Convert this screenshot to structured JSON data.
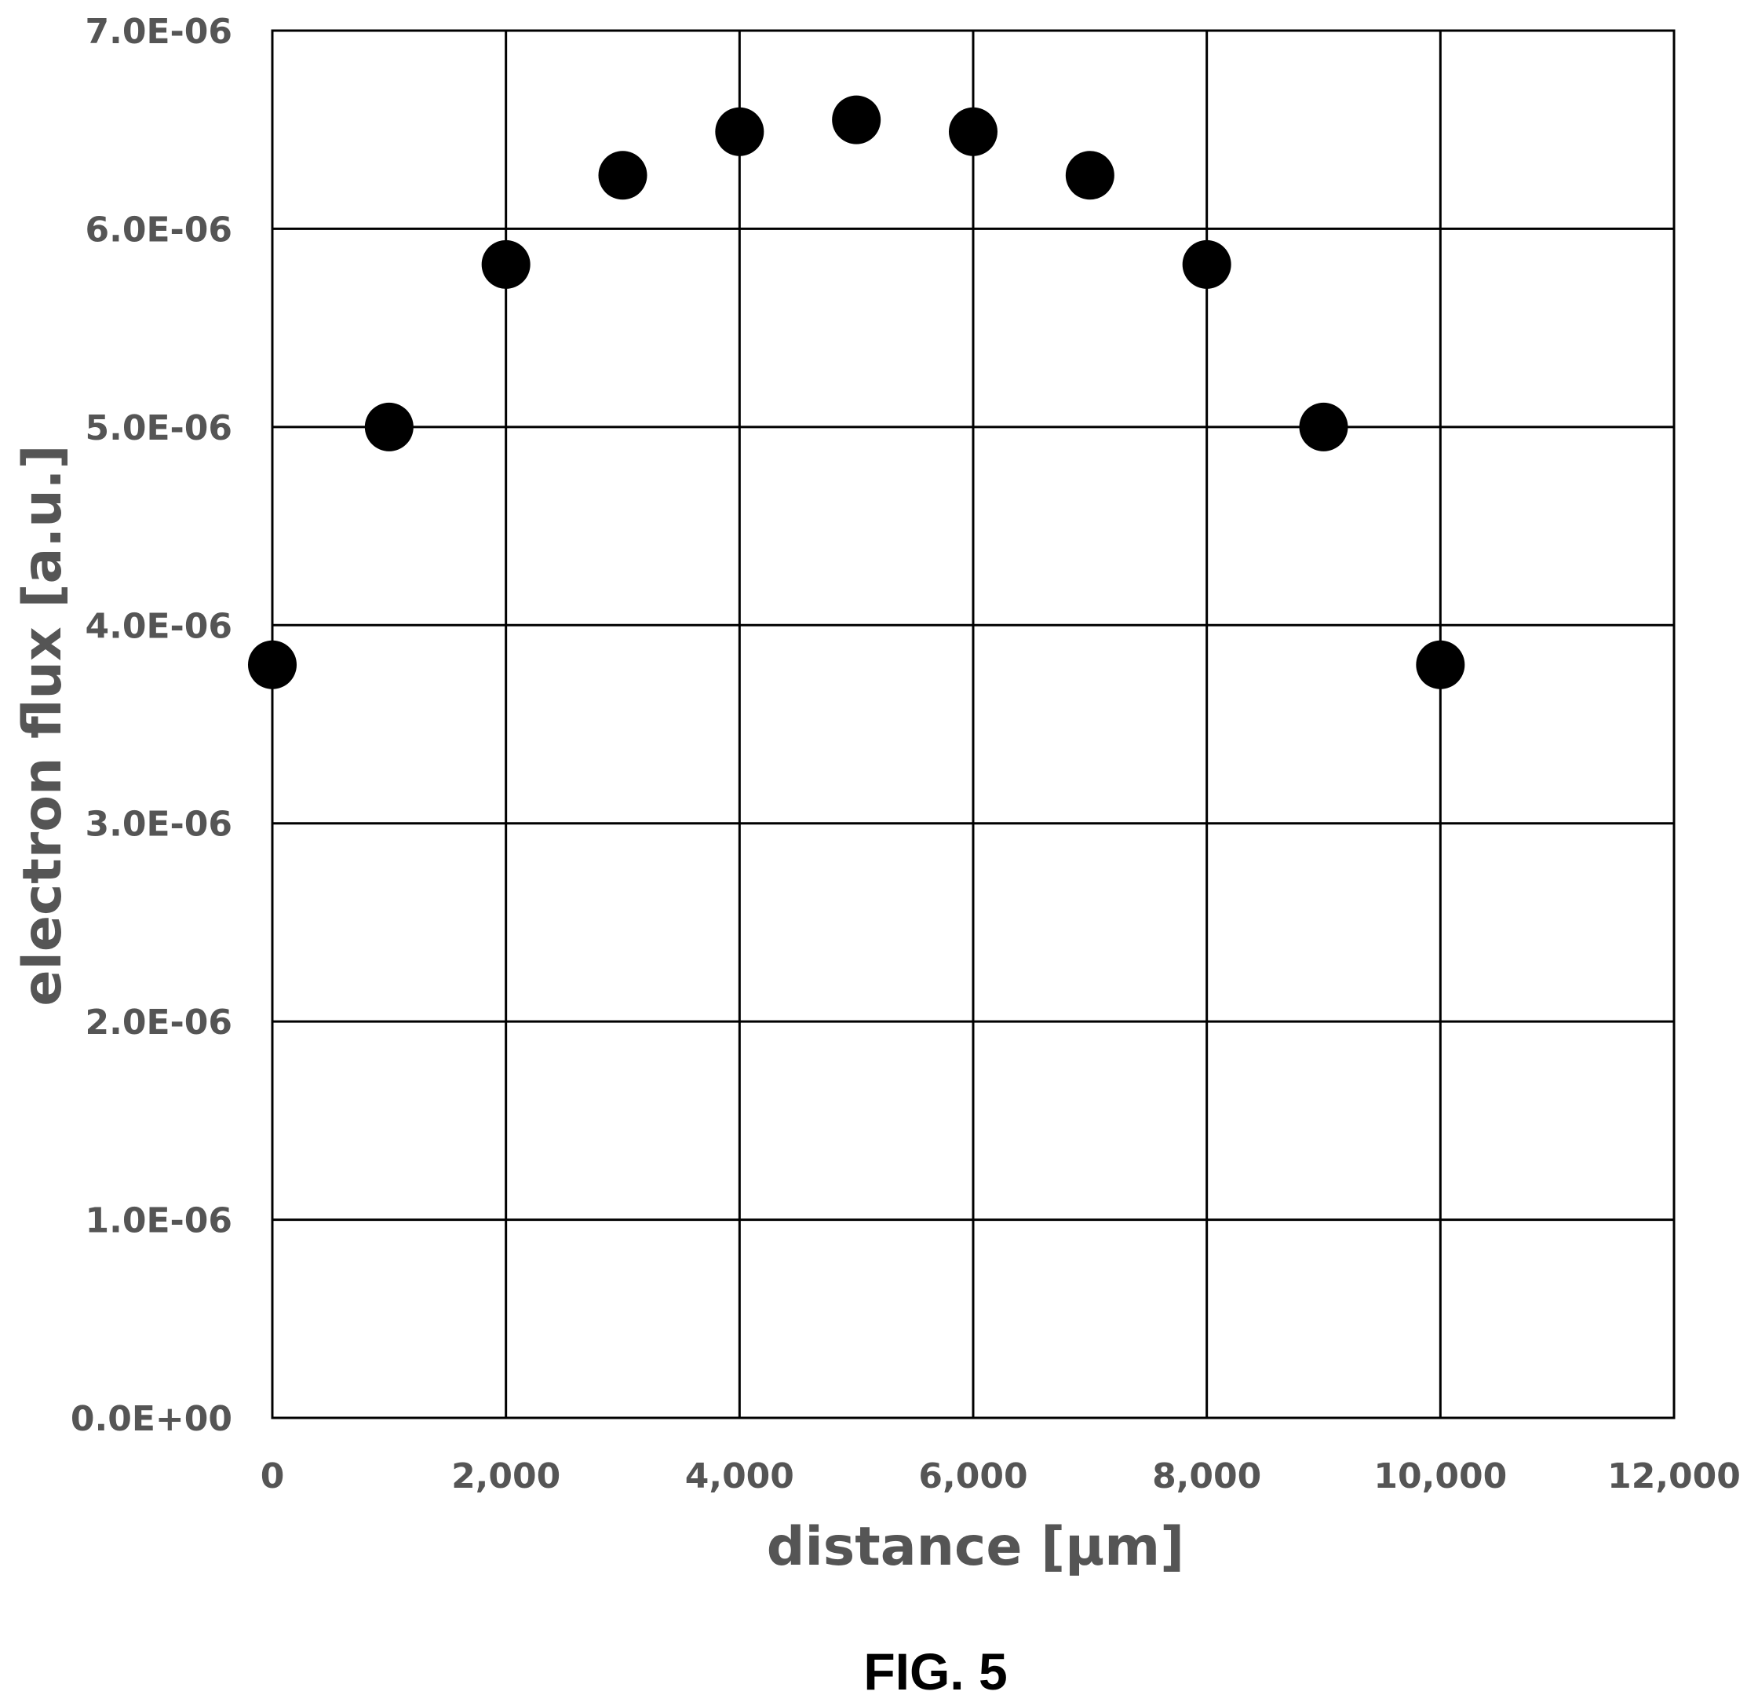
{
  "caption": "FIG. 5",
  "chart_data": {
    "type": "scatter",
    "xlabel": "distance [µm]",
    "ylabel": "electron flux [a.u.]",
    "xlim": [
      0,
      12000
    ],
    "ylim": [
      0,
      7e-06
    ],
    "x_ticks": [
      0,
      2000,
      4000,
      6000,
      8000,
      10000,
      12000
    ],
    "x_tick_labels": [
      "0",
      "2,000",
      "4,000",
      "6,000",
      "8,000",
      "10,000",
      "12,000"
    ],
    "y_ticks": [
      0,
      1e-06,
      2e-06,
      3e-06,
      4e-06,
      5e-06,
      6e-06,
      7e-06
    ],
    "y_tick_labels": [
      "0.0E+00",
      "1.0E-06",
      "2.0E-06",
      "3.0E-06",
      "4.0E-06",
      "5.0E-06",
      "6.0E-06",
      "7.0E-06"
    ],
    "grid": true,
    "legend": false,
    "marker_color": "#000000",
    "series": [
      {
        "x": [
          0,
          1000,
          2000,
          3000,
          4000,
          5000,
          6000,
          7000,
          8000,
          9000,
          10000
        ],
        "values": [
          3.8e-06,
          5e-06,
          5.82e-06,
          6.27e-06,
          6.49e-06,
          6.55e-06,
          6.49e-06,
          6.27e-06,
          5.82e-06,
          5e-06,
          3.8e-06
        ]
      }
    ]
  }
}
